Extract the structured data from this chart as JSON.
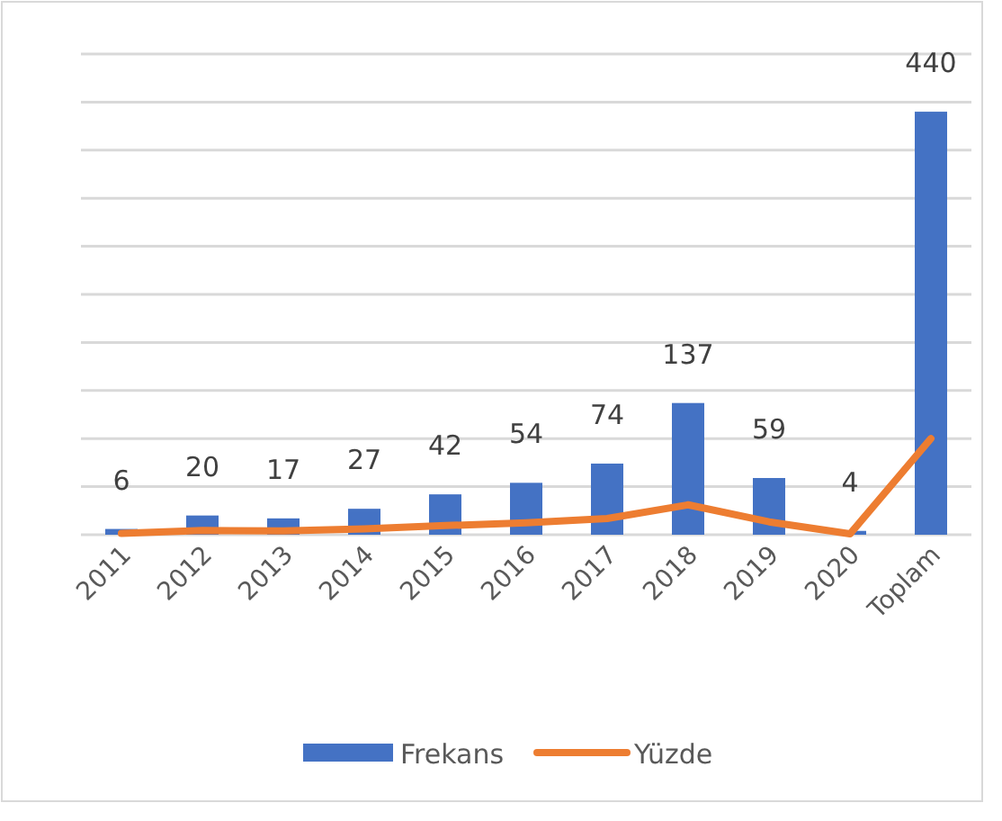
{
  "chart_data": {
    "type": "bar",
    "categories": [
      "2011",
      "2012",
      "2013",
      "2014",
      "2015",
      "2016",
      "2017",
      "2018",
      "2019",
      "2020",
      "Toplam"
    ],
    "series": [
      {
        "name": "Frekans",
        "color": "#4472c4",
        "values": [
          6,
          20,
          17,
          27,
          42,
          54,
          74,
          137,
          59,
          4,
          440
        ],
        "value_labels": [
          "6",
          "20",
          "17",
          "27",
          "42",
          "54",
          "74",
          "137",
          "59",
          "4",
          "440"
        ]
      },
      {
        "name": "Yüzde",
        "type": "line",
        "color": "#ed7d31",
        "values": [
          1.4,
          4.5,
          3.9,
          6.1,
          9.5,
          12.3,
          16.8,
          31.1,
          13.4,
          0.9,
          100
        ]
      }
    ],
    "ylim": [
      0,
      500
    ],
    "yticks": [
      {
        "value": 0,
        "label": null
      },
      {
        "value": 50,
        "label": null
      },
      {
        "value": 100,
        "label": null
      },
      {
        "value": 150,
        "label": null
      },
      {
        "value": 200,
        "label": null
      },
      {
        "value": 250,
        "label": null
      },
      {
        "value": 300,
        "label": null
      },
      {
        "value": 350,
        "label": null
      },
      {
        "value": 400,
        "label": null
      },
      {
        "value": 450,
        "label": null
      },
      {
        "value": 500,
        "label": null
      }
    ],
    "tick_labels": "x",
    "grid": "y",
    "legend": "bottom",
    "marker": "none",
    "line_style": "solid"
  }
}
